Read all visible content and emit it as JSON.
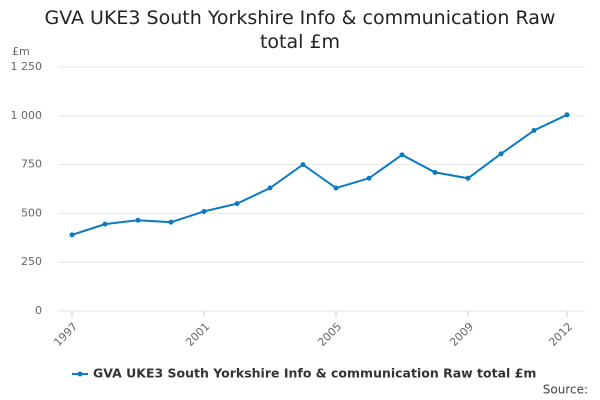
{
  "chart_data": {
    "type": "line",
    "title": "GVA UKE3 South Yorkshire Info & communication Raw total £m",
    "y_label": "£m",
    "x": [
      1997,
      1998,
      1999,
      2000,
      2001,
      2002,
      2003,
      2004,
      2005,
      2006,
      2007,
      2008,
      2009,
      2010,
      2011,
      2012
    ],
    "series": [
      {
        "name": "GVA UKE3 South Yorkshire Info & communication Raw total £m",
        "color": "#0c7bbf",
        "values": [
          390,
          445,
          465,
          455,
          510,
          550,
          630,
          750,
          630,
          680,
          800,
          710,
          680,
          805,
          925,
          1005
        ]
      }
    ],
    "xlim": [
      1997,
      2012
    ],
    "xticks": [
      1997,
      2001,
      2005,
      2009,
      2012
    ],
    "ylim": [
      0,
      1250
    ],
    "yticks": [
      0,
      250,
      500,
      750,
      {
        "value": 1000,
        "label": "1 000"
      },
      {
        "value": 1250,
        "label": "1 250"
      }
    ],
    "grid": true,
    "source": "Source:"
  }
}
